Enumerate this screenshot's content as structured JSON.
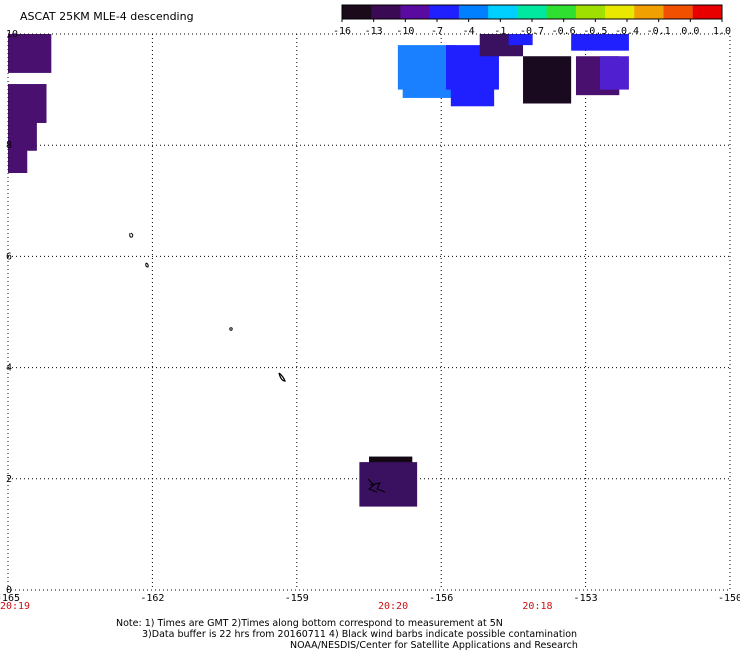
{
  "title": "ASCAT 25KM MLE-4 descending",
  "colorbar": {
    "labels": [
      "-16",
      "-13",
      "-10",
      "-7",
      "-4",
      "-1",
      "-0.7",
      "-0.6",
      "-0.5",
      "-0.4",
      "-0.1",
      "0.0",
      "1.0"
    ],
    "colors": [
      "#1a0a1a",
      "#3a0a55",
      "#5a0aa0",
      "#2020ff",
      "#0080ff",
      "#00d0ff",
      "#00e8a0",
      "#30e030",
      "#a0e000",
      "#e8e800",
      "#f0a000",
      "#f05000",
      "#e80000"
    ]
  },
  "x_axis": {
    "ticks": [
      {
        "value": -165,
        "label": "-165"
      },
      {
        "value": -162,
        "label": "-162"
      },
      {
        "value": -159,
        "label": "-159"
      },
      {
        "value": -156,
        "label": "-156"
      },
      {
        "value": -153,
        "label": "-153"
      },
      {
        "value": -150,
        "label": "-150"
      }
    ],
    "time_labels": [
      {
        "lon": -165,
        "label": "20:19"
      },
      {
        "lon": -157,
        "label": "20:20"
      },
      {
        "lon": -154,
        "label": "20:18"
      }
    ]
  },
  "y_axis": {
    "ticks": [
      {
        "value": 0,
        "label": "0"
      },
      {
        "value": 2,
        "label": "2"
      },
      {
        "value": 4,
        "label": "4"
      },
      {
        "value": 6,
        "label": "6"
      },
      {
        "value": 8,
        "label": "8"
      },
      {
        "value": 10,
        "label": "10"
      }
    ]
  },
  "notes": [
    "Note: 1) Times are GMT 2)Times along bottom correspond to measurement at 5N",
    "3)Data buffer is 22 hrs from 20160711 4) Black wind barbs indicate possible contamination",
    "NOAA/NESDIS/Center for Satellite Applications and Research"
  ],
  "map_data": {
    "lon_range": [
      -165,
      -150
    ],
    "lat_range": [
      0,
      10
    ],
    "cell_size_deg": 0.25,
    "cells": [
      {
        "lon0": -165.0,
        "lon1": -164.1,
        "lat0": 9.3,
        "lat1": 10.0,
        "color": "#4a1070"
      },
      {
        "lon0": -165.0,
        "lon1": -164.2,
        "lat0": 8.4,
        "lat1": 9.1,
        "color": "#4a1070"
      },
      {
        "lon0": -165.0,
        "lon1": -164.4,
        "lat0": 7.9,
        "lat1": 8.6,
        "color": "#4a1070"
      },
      {
        "lon0": -165.0,
        "lon1": -164.6,
        "lat0": 7.5,
        "lat1": 8.0,
        "color": "#4a1070"
      },
      {
        "lon0": -156.9,
        "lon1": -155.7,
        "lat0": 9.0,
        "lat1": 9.8,
        "color": "#1a80ff"
      },
      {
        "lon0": -156.8,
        "lon1": -155.7,
        "lat0": 8.85,
        "lat1": 9.1,
        "color": "#1a80ff"
      },
      {
        "lon0": -155.9,
        "lon1": -154.8,
        "lat0": 9.0,
        "lat1": 9.8,
        "color": "#2020ff"
      },
      {
        "lon0": -155.8,
        "lon1": -154.9,
        "lat0": 8.7,
        "lat1": 9.05,
        "color": "#2020ff"
      },
      {
        "lon0": -155.2,
        "lon1": -154.3,
        "lat0": 9.6,
        "lat1": 10.0,
        "color": "#3a1060"
      },
      {
        "lon0": -154.6,
        "lon1": -154.1,
        "lat0": 9.8,
        "lat1": 10.0,
        "color": "#2020ff"
      },
      {
        "lon0": -154.3,
        "lon1": -153.3,
        "lat0": 8.75,
        "lat1": 9.6,
        "color": "#1a0a20"
      },
      {
        "lon0": -153.3,
        "lon1": -152.1,
        "lat0": 9.7,
        "lat1": 10.0,
        "color": "#2020ff"
      },
      {
        "lon0": -153.2,
        "lon1": -152.3,
        "lat0": 8.9,
        "lat1": 9.6,
        "color": "#4a1070"
      },
      {
        "lon0": -152.7,
        "lon1": -152.1,
        "lat0": 9.0,
        "lat1": 9.6,
        "color": "#5020d0"
      },
      {
        "lon0": -157.5,
        "lon1": -156.6,
        "lat0": 2.2,
        "lat1": 2.4,
        "color": "#140814"
      },
      {
        "lon0": -157.7,
        "lon1": -156.5,
        "lat0": 1.5,
        "lat1": 2.3,
        "color": "#3a1060"
      }
    ]
  }
}
